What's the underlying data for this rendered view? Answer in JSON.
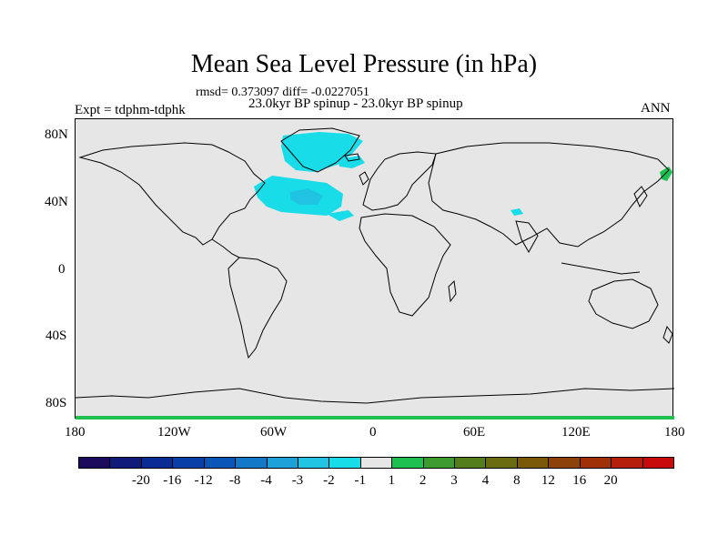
{
  "title": "Mean Sea Level Pressure (in hPa)",
  "stats": "rmsd= 0.373097 diff= -0.0227051",
  "comparison": "23.0kyr BP spinup - 23.0kyr BP spinup",
  "experiment": "Expt = tdphm-tdphk",
  "season": "ANN",
  "lat_ticks": [
    "80N",
    "40N",
    "0",
    "40S",
    "80S"
  ],
  "lon_ticks": [
    "180",
    "120W",
    "60W",
    "0",
    "60E",
    "120E",
    "180"
  ],
  "colorbar": {
    "colors": [
      "#1b0a5c",
      "#101a78",
      "#0b2b94",
      "#0a3fa8",
      "#0a55b8",
      "#1478c8",
      "#1ea0d8",
      "#20c4e2",
      "#18dce8",
      "#e6e6e6",
      "#1ec050",
      "#3c9a2e",
      "#547d1c",
      "#6a6a10",
      "#7a5a08",
      "#8c4208",
      "#a03008",
      "#b41e0a",
      "#c80a0a"
    ],
    "labels": [
      "-20",
      "-16",
      "-12",
      "-8",
      "-4",
      "-3",
      "-2",
      "-1",
      "1",
      "2",
      "3",
      "4",
      "8",
      "12",
      "16",
      "20"
    ]
  },
  "map_colors": {
    "background": "#e6e6e6",
    "light_negative": "#18dce8",
    "mid_negative": "#20c4e2",
    "positive": "#1ec050"
  }
}
